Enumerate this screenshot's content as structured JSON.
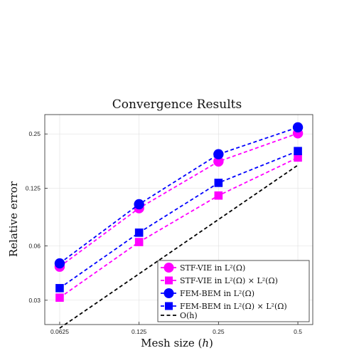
{
  "chart_data": {
    "type": "line",
    "title": "Convergence Results",
    "xlabel": "Mesh size (h)",
    "ylabel": "Relative error",
    "x_scale": "log",
    "y_scale": "log",
    "xlim": [
      0.0625,
      0.5
    ],
    "ylim": [
      0.022,
      0.32
    ],
    "x_ticks": [
      0.0625,
      0.125,
      0.25,
      0.5
    ],
    "x_tick_labels": [
      "0.0625",
      "0.125",
      "0.25",
      "0.5"
    ],
    "y_ticks": [
      0.03,
      0.06,
      0.125,
      0.25
    ],
    "y_tick_labels": [
      "0.03",
      "0.06",
      "0.125",
      "0.25"
    ],
    "grid": true,
    "legend_position": "bottom-right",
    "x": [
      0.0625,
      0.125,
      0.25,
      0.5
    ],
    "series": [
      {
        "name": "STF-VIE in L²(Ω)",
        "values": [
          0.046,
          0.097,
          0.176,
          0.252
        ],
        "color": "#ff00ff",
        "marker": "circle"
      },
      {
        "name": "STF-VIE in L²(Ω) × L²(Ω)",
        "values": [
          0.031,
          0.063,
          0.114,
          0.185
        ],
        "color": "#ff00ff",
        "marker": "square"
      },
      {
        "name": "FEM-BEM in L²(Ω)",
        "values": [
          0.048,
          0.102,
          0.193,
          0.272
        ],
        "color": "#0000ff",
        "marker": "circle"
      },
      {
        "name": "FEM-BEM in L²(Ω) × L²(Ω)",
        "values": [
          0.035,
          0.071,
          0.134,
          0.201
        ],
        "color": "#0000ff",
        "marker": "square"
      },
      {
        "name": "O(h)",
        "x": [
          0.0625,
          0.5
        ],
        "values": [
          0.021,
          0.168
        ],
        "color": "#000000",
        "marker": "none"
      }
    ]
  }
}
